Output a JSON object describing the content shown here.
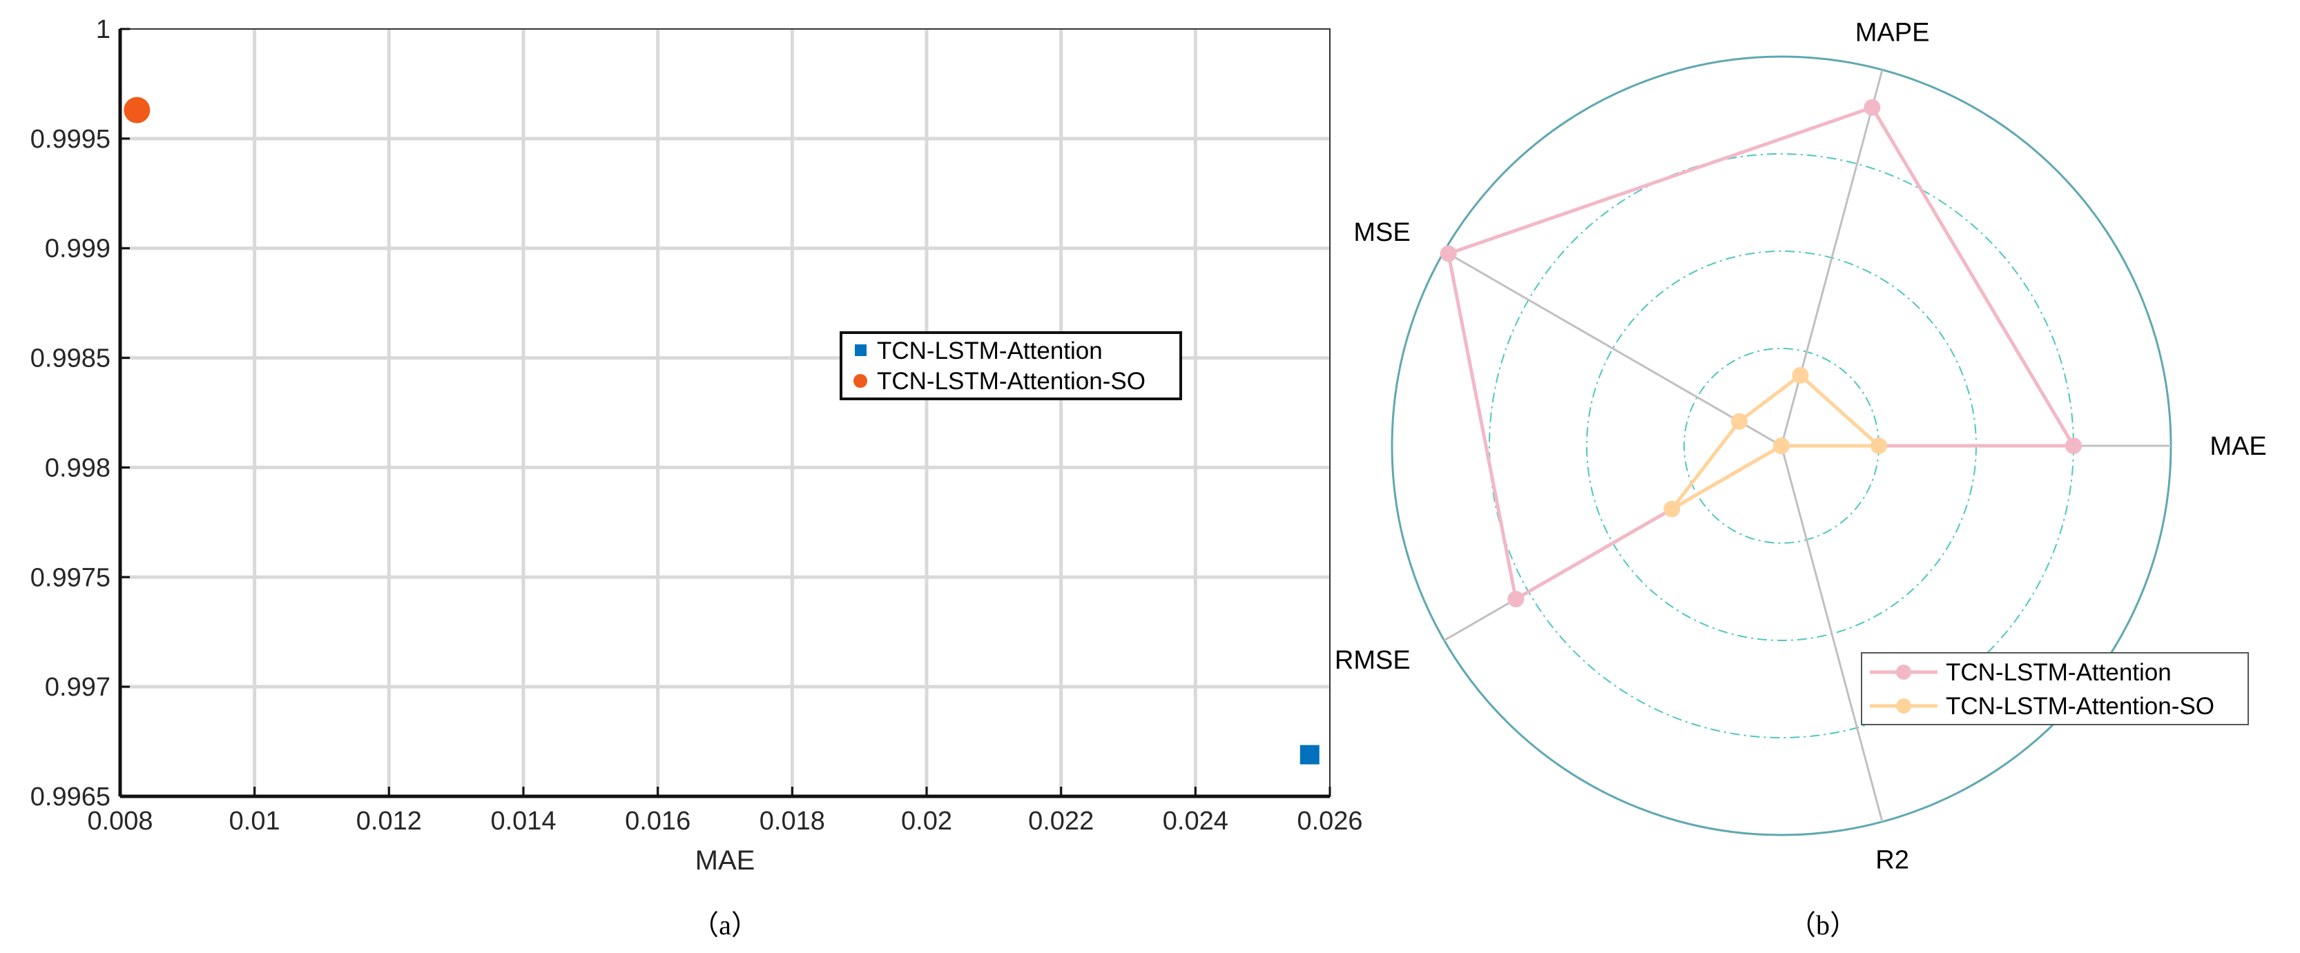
{
  "chart_data": [
    {
      "type": "scatter",
      "caption": "（a）",
      "xlabel": "MAE",
      "ylabel": "",
      "xlim": [
        0.008,
        0.026
      ],
      "ylim": [
        0.9965,
        1
      ],
      "grid": true,
      "legend_placement": "center-right",
      "x_ticks": [
        {
          "value": 0.008,
          "label": "0.008"
        },
        {
          "value": 0.01,
          "label": "0.01"
        },
        {
          "value": 0.012,
          "label": "0.012"
        },
        {
          "value": 0.014,
          "label": "0.014"
        },
        {
          "value": 0.016,
          "label": "0.016"
        },
        {
          "value": 0.018,
          "label": "0.018"
        },
        {
          "value": 0.02,
          "label": "0.02"
        },
        {
          "value": 0.022,
          "label": "0.022"
        },
        {
          "value": 0.024,
          "label": "0.024"
        },
        {
          "value": 0.026,
          "label": "0.026"
        }
      ],
      "y_ticks": [
        {
          "value": 0.9965,
          "label": "0.9965"
        },
        {
          "value": 0.997,
          "label": "0.997"
        },
        {
          "value": 0.9975,
          "label": "0.9975"
        },
        {
          "value": 0.998,
          "label": "0.998"
        },
        {
          "value": 0.9985,
          "label": "0.9985"
        },
        {
          "value": 0.999,
          "label": "0.999"
        },
        {
          "value": 0.9995,
          "label": "0.9995"
        },
        {
          "value": 1.0,
          "label": "1"
        }
      ],
      "series": [
        {
          "name": "TCN-LSTM-Attention",
          "marker": "square",
          "color": "#0072bd",
          "x": [
            0.0257
          ],
          "y": [
            0.99669
          ]
        },
        {
          "name": "TCN-LSTM-Attention-SO",
          "marker": "circle",
          "color": "#f05a1a",
          "x": [
            0.00825
          ],
          "y": [
            0.99963
          ]
        }
      ]
    },
    {
      "type": "radar",
      "caption": "（b）",
      "axes": [
        "MAE",
        "MAPE",
        "MSE",
        "RMSE",
        "R2"
      ],
      "rmax": 4,
      "rings": [
        1,
        2,
        3,
        4
      ],
      "legend_placement": "bottom-right",
      "series": [
        {
          "name": "TCN-LSTM-Attention",
          "color": "#f2b8c6",
          "values": [
            3.0,
            3.6,
            3.95,
            3.15,
            0.0
          ]
        },
        {
          "name": "TCN-LSTM-Attention-SO",
          "color": "#ffd39a",
          "values": [
            1.0,
            0.75,
            0.5,
            1.3,
            0.0
          ]
        }
      ]
    }
  ]
}
